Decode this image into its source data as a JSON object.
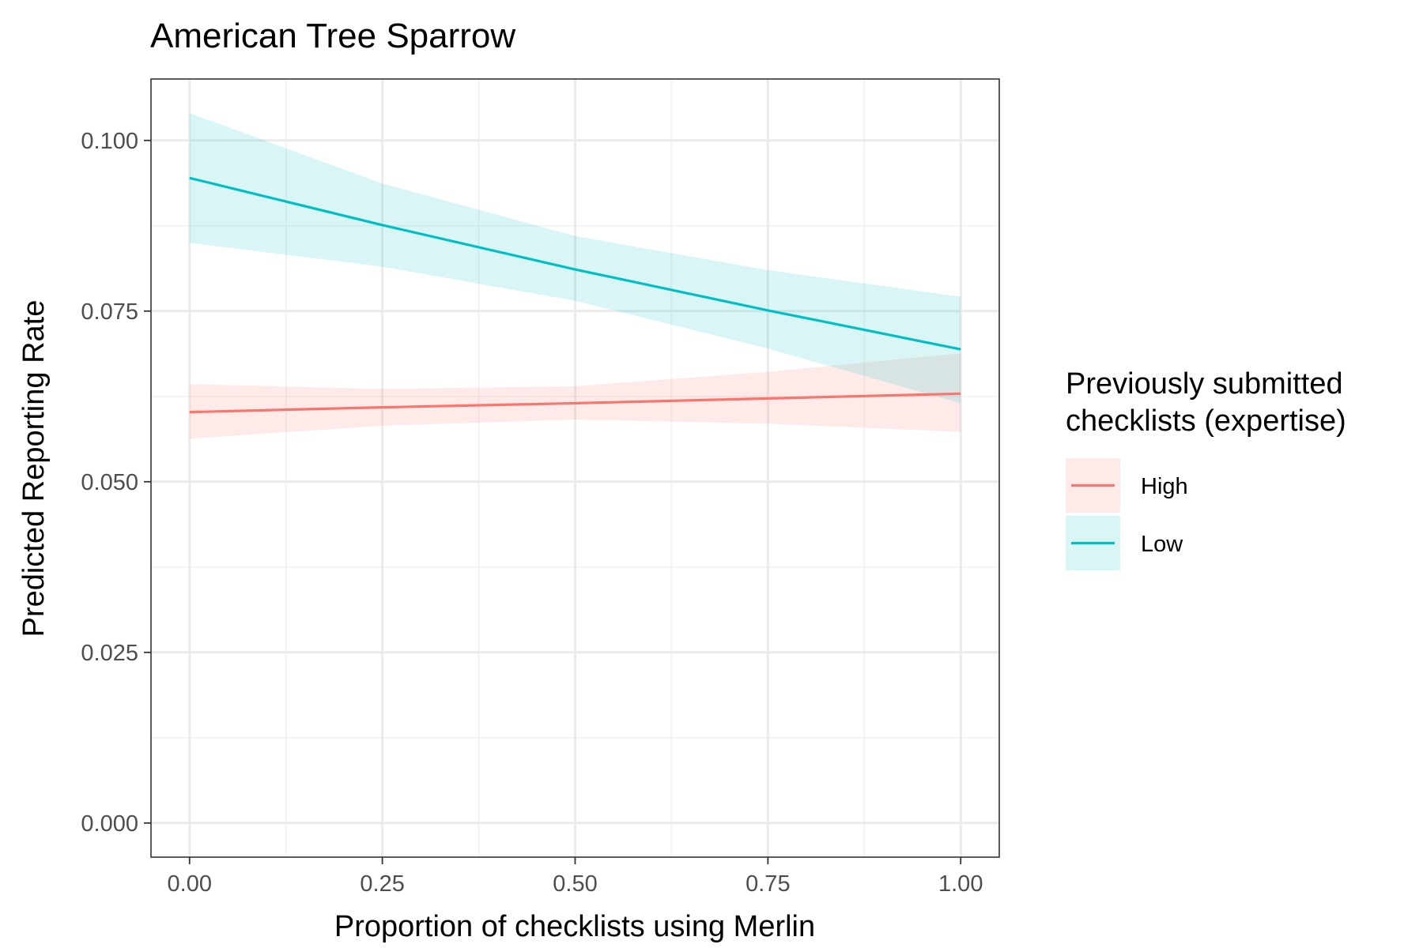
{
  "chart_data": {
    "type": "line",
    "title": "American Tree Sparrow",
    "xlabel": "Proportion of checklists using Merlin",
    "ylabel": "Predicted Reporting Rate",
    "xlim": [
      -0.05,
      1.05
    ],
    "ylim": [
      -0.005,
      0.109
    ],
    "x_ticks": [
      0,
      0.25,
      0.5,
      0.75,
      1
    ],
    "x_tick_labels": [
      "0.00",
      "0.25",
      "0.50",
      "0.75",
      "1.00"
    ],
    "y_ticks": [
      0,
      0.025,
      0.05,
      0.075,
      0.1
    ],
    "y_tick_labels": [
      "0.000",
      "0.025",
      "0.050",
      "0.075",
      "0.100"
    ],
    "grid": true,
    "legend": {
      "title_lines": [
        "Previously submitted",
        "checklists (expertise)"
      ],
      "position": "right"
    },
    "series": [
      {
        "name": "High",
        "color": "#F8766D",
        "fill": "#FDE8E6",
        "x": [
          0,
          0.25,
          0.5,
          0.75,
          1
        ],
        "y": [
          0.0602,
          0.0609,
          0.0615,
          0.0622,
          0.0629
        ],
        "lower": [
          0.0563,
          0.0582,
          0.0591,
          0.0585,
          0.0573
        ],
        "upper": [
          0.0643,
          0.0636,
          0.064,
          0.0661,
          0.0688
        ]
      },
      {
        "name": "Low",
        "color": "#00BFC4",
        "fill": "#E0F6F7",
        "x": [
          0,
          0.25,
          0.5,
          0.75,
          1
        ],
        "y": [
          0.0945,
          0.0876,
          0.0811,
          0.0751,
          0.0694
        ],
        "lower": [
          0.085,
          0.0815,
          0.0765,
          0.0695,
          0.0615
        ],
        "upper": [
          0.104,
          0.0937,
          0.086,
          0.081,
          0.0771
        ]
      }
    ]
  }
}
